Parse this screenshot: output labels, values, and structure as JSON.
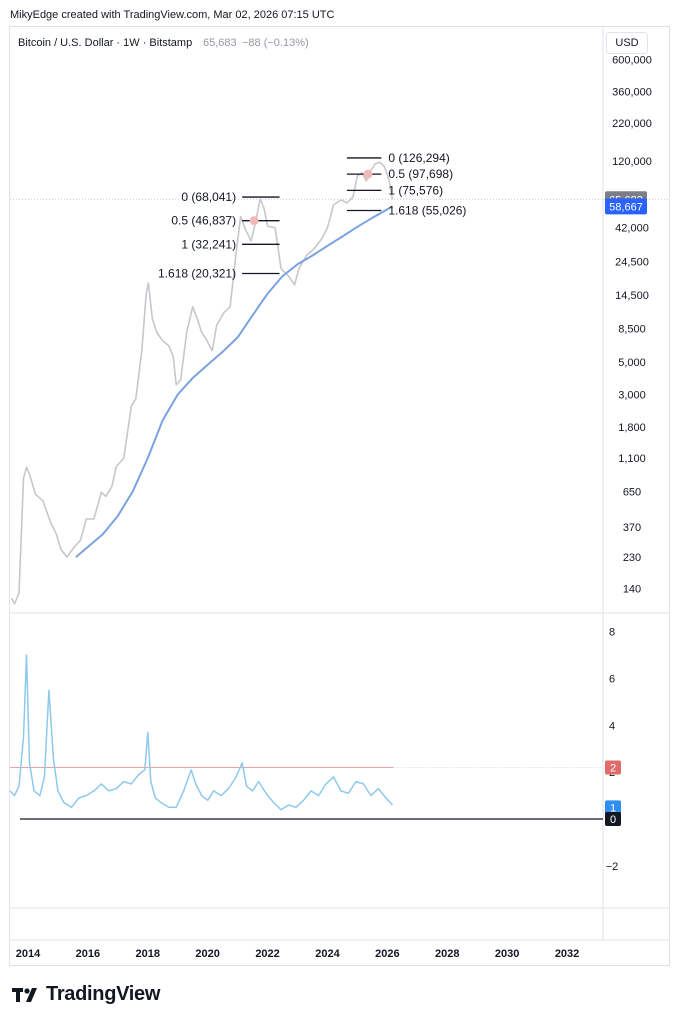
{
  "header": {
    "credit": "MikyEdge created with TradingView.com, Mar 02, 2026 07:15 UTC"
  },
  "legend": {
    "symbol": "Bitcoin / U.S. Dollar · 1W · Bitstamp",
    "price": "65,683",
    "change": "−88 (−0.13%)"
  },
  "currency_button": "USD",
  "brand": "TradingView",
  "colors": {
    "price_line": "#c7c7cc",
    "ma_line": "#7aa2e0",
    "osc_line": "#8ec9ec",
    "level2": "#e9a3a3",
    "fib": "#131722",
    "marker": "#f2b7b7"
  },
  "chart_data": [
    {
      "type": "line",
      "title": "",
      "scale": "log",
      "ylim": [
        95,
        1000000
      ],
      "y_ticks": [
        "600,000",
        "360,000",
        "220,000",
        "120,000",
        "65,683",
        "42,000",
        "24,500",
        "14,500",
        "8,500",
        "5,000",
        "3,000",
        "1,800",
        "1,100",
        "650",
        "370",
        "230",
        "140"
      ],
      "x_ticks": [
        "2014",
        "2016",
        "2018",
        "2020",
        "2022",
        "2024",
        "2026",
        "2028",
        "2030",
        "2032"
      ],
      "xlim": [
        2013.4,
        2033.2
      ],
      "series": [
        {
          "name": "",
          "x": [
            2013.45,
            2013.55,
            2013.7,
            2013.85,
            2013.95,
            2014.05,
            2014.25,
            2014.5,
            2014.75,
            2014.95,
            2015.1,
            2015.3,
            2015.55,
            2015.75,
            2015.95,
            2016.2,
            2016.45,
            2016.6,
            2016.8,
            2016.95,
            2017.2,
            2017.45,
            2017.6,
            2017.8,
            2017.95,
            2018.02,
            2018.15,
            2018.3,
            2018.5,
            2018.7,
            2018.85,
            2018.95,
            2019.1,
            2019.3,
            2019.5,
            2019.65,
            2019.8,
            2019.95,
            2020.15,
            2020.3,
            2020.55,
            2020.75,
            2020.95,
            2021.1,
            2021.28,
            2021.45,
            2021.6,
            2021.75,
            2021.88,
            2022.0,
            2022.25,
            2022.45,
            2022.7,
            2022.9,
            2023.05,
            2023.3,
            2023.55,
            2023.8,
            2024.0,
            2024.2,
            2024.45,
            2024.65,
            2024.85,
            2025.0,
            2025.15,
            2025.3,
            2025.45,
            2025.6,
            2025.75,
            2025.9,
            2026.05,
            2026.17
          ],
          "y": [
            120,
            110,
            130,
            800,
            950,
            850,
            620,
            560,
            400,
            330,
            260,
            230,
            270,
            300,
            420,
            420,
            640,
            600,
            700,
            960,
            1100,
            2500,
            2800,
            6000,
            15000,
            17500,
            10000,
            8000,
            7000,
            6500,
            5500,
            3500,
            3800,
            8000,
            12000,
            10000,
            8000,
            7200,
            6000,
            9000,
            11000,
            12000,
            28000,
            50000,
            40000,
            34000,
            46000,
            66000,
            57000,
            43000,
            42000,
            22000,
            19500,
            17000,
            22000,
            27000,
            30000,
            35000,
            42000,
            60000,
            65000,
            62000,
            68000,
            95000,
            100000,
            88000,
            104000,
            115000,
            118000,
            110000,
            90000,
            65683
          ]
        },
        {
          "name": "",
          "x": [
            2015.6,
            2016.0,
            2016.5,
            2017.0,
            2017.5,
            2018.0,
            2018.5,
            2019.0,
            2019.5,
            2020.0,
            2020.5,
            2021.0,
            2021.5,
            2022.0,
            2022.5,
            2023.0,
            2023.5,
            2024.0,
            2024.5,
            2025.0,
            2025.5,
            2026.0,
            2026.17
          ],
          "y": [
            230,
            270,
            330,
            440,
            650,
            1100,
            2000,
            3000,
            3900,
            4800,
            5900,
            7400,
            10500,
            14800,
            19500,
            23500,
            27000,
            31500,
            36500,
            42500,
            49000,
            56000,
            58667
          ]
        }
      ],
      "price_labels": [
        "65,683",
        "58,667"
      ],
      "fib_levels": [
        {
          "label": "0 (68,041)",
          "value": 68041,
          "set": "2021"
        },
        {
          "label": "0.5 (46,837)",
          "value": 46837,
          "set": "2021"
        },
        {
          "label": "1 (32,241)",
          "value": 32241,
          "set": "2021"
        },
        {
          "label": "1.618 (20,321)",
          "value": 20321,
          "set": "2021"
        },
        {
          "label": "0 (126,294)",
          "value": 126294,
          "set": "2025"
        },
        {
          "label": "0.5 (97,698)",
          "value": 97698,
          "set": "2025"
        },
        {
          "label": "1 (75,576)",
          "value": 75576,
          "set": "2025"
        },
        {
          "label": "1.618 (55,026)",
          "value": 55026,
          "set": "2025"
        }
      ]
    },
    {
      "type": "line",
      "title": "",
      "scale": "linear",
      "ylim": [
        -3.8,
        8.8
      ],
      "y_ticks": [
        "8",
        "6",
        "4",
        "2",
        "−2"
      ],
      "x_ticks": [
        "2014",
        "2016",
        "2018",
        "2020",
        "2022",
        "2024",
        "2026",
        "2028",
        "2030",
        "2032"
      ],
      "levels": [
        {
          "label": "2",
          "value": 2.2
        },
        {
          "label": "1",
          "value": 0.5
        },
        {
          "label": "0",
          "value": 0
        }
      ],
      "series": [
        {
          "name": "",
          "x": [
            2013.4,
            2013.55,
            2013.7,
            2013.85,
            2013.95,
            2014.05,
            2014.2,
            2014.4,
            2014.55,
            2014.7,
            2014.85,
            2015.0,
            2015.2,
            2015.45,
            2015.7,
            2015.95,
            2016.2,
            2016.45,
            2016.7,
            2016.95,
            2017.2,
            2017.45,
            2017.7,
            2017.9,
            2018.0,
            2018.1,
            2018.25,
            2018.45,
            2018.7,
            2018.95,
            2019.2,
            2019.45,
            2019.6,
            2019.8,
            2020.0,
            2020.2,
            2020.45,
            2020.7,
            2020.95,
            2021.15,
            2021.3,
            2021.5,
            2021.7,
            2021.95,
            2022.2,
            2022.45,
            2022.7,
            2022.95,
            2023.2,
            2023.45,
            2023.7,
            2023.95,
            2024.2,
            2024.45,
            2024.7,
            2024.95,
            2025.2,
            2025.45,
            2025.7,
            2025.95,
            2026.17
          ],
          "y": [
            1.2,
            1.0,
            1.4,
            3.5,
            7.0,
            2.4,
            1.2,
            1.0,
            1.8,
            5.5,
            2.6,
            1.2,
            0.7,
            0.5,
            0.9,
            1.0,
            1.2,
            1.5,
            1.2,
            1.3,
            1.6,
            1.5,
            1.9,
            2.1,
            3.7,
            1.6,
            0.9,
            0.7,
            0.5,
            0.5,
            1.2,
            2.1,
            1.5,
            1.0,
            0.8,
            1.2,
            1.0,
            1.3,
            1.8,
            2.4,
            1.4,
            1.2,
            1.6,
            1.1,
            0.7,
            0.4,
            0.6,
            0.5,
            0.8,
            1.2,
            1.0,
            1.5,
            1.8,
            1.2,
            1.1,
            1.6,
            1.5,
            1.0,
            1.3,
            0.9,
            0.6
          ]
        }
      ]
    }
  ]
}
